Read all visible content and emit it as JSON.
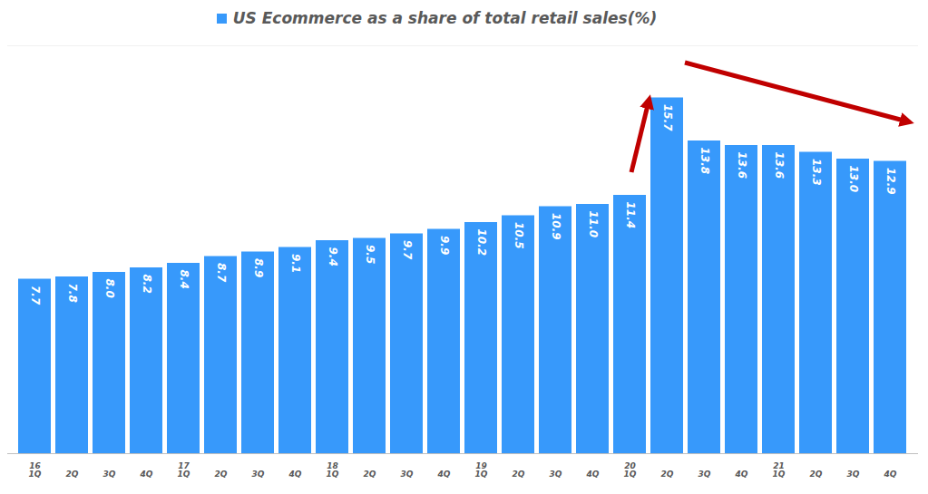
{
  "chart_data": {
    "type": "bar",
    "title": "US Ecommerce as a share of total retail sales(%)",
    "categories": [
      "16\n1Q",
      "2Q",
      "3Q",
      "4Q",
      "17\n1Q",
      "2Q",
      "3Q",
      "4Q",
      "18\n1Q",
      "2Q",
      "3Q",
      "4Q",
      "19\n1Q",
      "2Q",
      "3Q",
      "4Q",
      "20\n1Q",
      "2Q",
      "3Q",
      "4Q",
      "21\n1Q",
      "2Q",
      "3Q",
      "4Q"
    ],
    "values": [
      7.7,
      7.8,
      8.0,
      8.2,
      8.4,
      8.7,
      8.9,
      9.1,
      9.4,
      9.5,
      9.7,
      9.9,
      10.2,
      10.5,
      10.9,
      11.0,
      11.4,
      15.7,
      13.8,
      13.6,
      13.6,
      13.3,
      13.0,
      12.9
    ],
    "value_labels": [
      "7.7",
      "7.8",
      "8.0",
      "8.2",
      "8.4",
      "8.7",
      "8.9",
      "9.1",
      "9.4",
      "9.5",
      "9.7",
      "9.9",
      "10.2",
      "10.5",
      "10.9",
      "11.0",
      "11.4",
      "15.7",
      "13.8",
      "13.6",
      "13.6",
      "13.3",
      "13.0",
      "12.9"
    ],
    "color": "#3799fb",
    "ylim": [
      0,
      18
    ],
    "grid": false,
    "data_labels": true,
    "tick_labels": "x"
  }
}
